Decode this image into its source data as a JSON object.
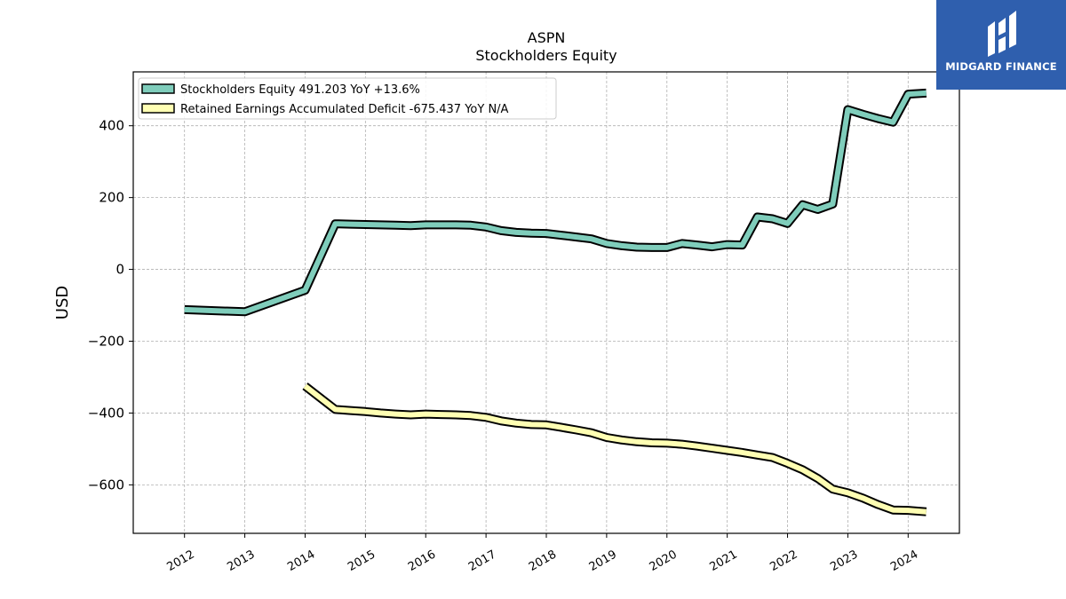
{
  "chart_data": {
    "type": "line",
    "title": "ASPN",
    "subtitle": "Stockholders  Equity",
    "ylabel": "USD",
    "xlabel": "",
    "ylim": [
      -735,
      550
    ],
    "xlim": [
      2011.15,
      2024.85
    ],
    "grid": true,
    "legend_position": "top-left",
    "x_ticks": [
      "2012",
      "2013",
      "2014",
      "2015",
      "2016",
      "2017",
      "2018",
      "2019",
      "2020",
      "2021",
      "2022",
      "2023",
      "2024"
    ],
    "y_ticks": [
      400,
      200,
      0,
      -200,
      -400,
      -600
    ],
    "y_tick_labels": [
      "400",
      "200",
      "0",
      "−200",
      "−400",
      "−600"
    ],
    "series": [
      {
        "name": "Stockholders Equity",
        "legend_label": "Stockholders Equity  491.203 YoY +13.6%",
        "color": "#7fcdbb",
        "x": [
          2012.0,
          2013.0,
          2014.0,
          2014.5,
          2014.75,
          2015.0,
          2015.25,
          2015.5,
          2015.75,
          2016.0,
          2016.25,
          2016.5,
          2016.75,
          2017.0,
          2017.25,
          2017.5,
          2017.75,
          2018.0,
          2018.25,
          2018.5,
          2018.75,
          2019.0,
          2019.25,
          2019.5,
          2019.75,
          2020.0,
          2020.25,
          2020.5,
          2020.75,
          2021.0,
          2021.25,
          2021.5,
          2021.75,
          2022.0,
          2022.25,
          2022.5,
          2022.75,
          2023.0,
          2023.25,
          2023.5,
          2023.75,
          2024.0,
          2024.3
        ],
        "values": [
          -112,
          -118,
          -58,
          127,
          126,
          125,
          124,
          123,
          122,
          124,
          124,
          124,
          123,
          118,
          108,
          103,
          101,
          100,
          95,
          90,
          85,
          72,
          66,
          62,
          61,
          61,
          72,
          68,
          63,
          69,
          68,
          146,
          141,
          128,
          180,
          167,
          182,
          445,
          432,
          420,
          410,
          488,
          491
        ]
      },
      {
        "name": "Retained Earnings Accumulated Deficit",
        "legend_label": "Retained Earnings Accumulated Deficit  -675.437 YoY N/A",
        "color": "#ffffb3",
        "x": [
          2014.0,
          2014.5,
          2014.75,
          2015.0,
          2015.25,
          2015.5,
          2015.75,
          2016.0,
          2016.25,
          2016.5,
          2016.75,
          2017.0,
          2017.25,
          2017.5,
          2017.75,
          2018.0,
          2018.25,
          2018.5,
          2018.75,
          2019.0,
          2019.25,
          2019.5,
          2019.75,
          2020.0,
          2020.25,
          2020.5,
          2020.75,
          2021.0,
          2021.25,
          2021.5,
          2021.75,
          2022.0,
          2022.25,
          2022.5,
          2022.75,
          2023.0,
          2023.25,
          2023.5,
          2023.75,
          2024.0,
          2024.3
        ],
        "values": [
          -325,
          -390,
          -393,
          -396,
          -400,
          -403,
          -405,
          -403,
          -404,
          -405,
          -407,
          -412,
          -422,
          -428,
          -432,
          -433,
          -440,
          -447,
          -455,
          -468,
          -475,
          -480,
          -483,
          -484,
          -487,
          -492,
          -498,
          -504,
          -510,
          -517,
          -524,
          -540,
          -558,
          -582,
          -612,
          -622,
          -637,
          -655,
          -670,
          -671,
          -675
        ]
      }
    ]
  },
  "logo": {
    "text": "MIDGARD FINANCE",
    "background": "#2f5fae"
  }
}
